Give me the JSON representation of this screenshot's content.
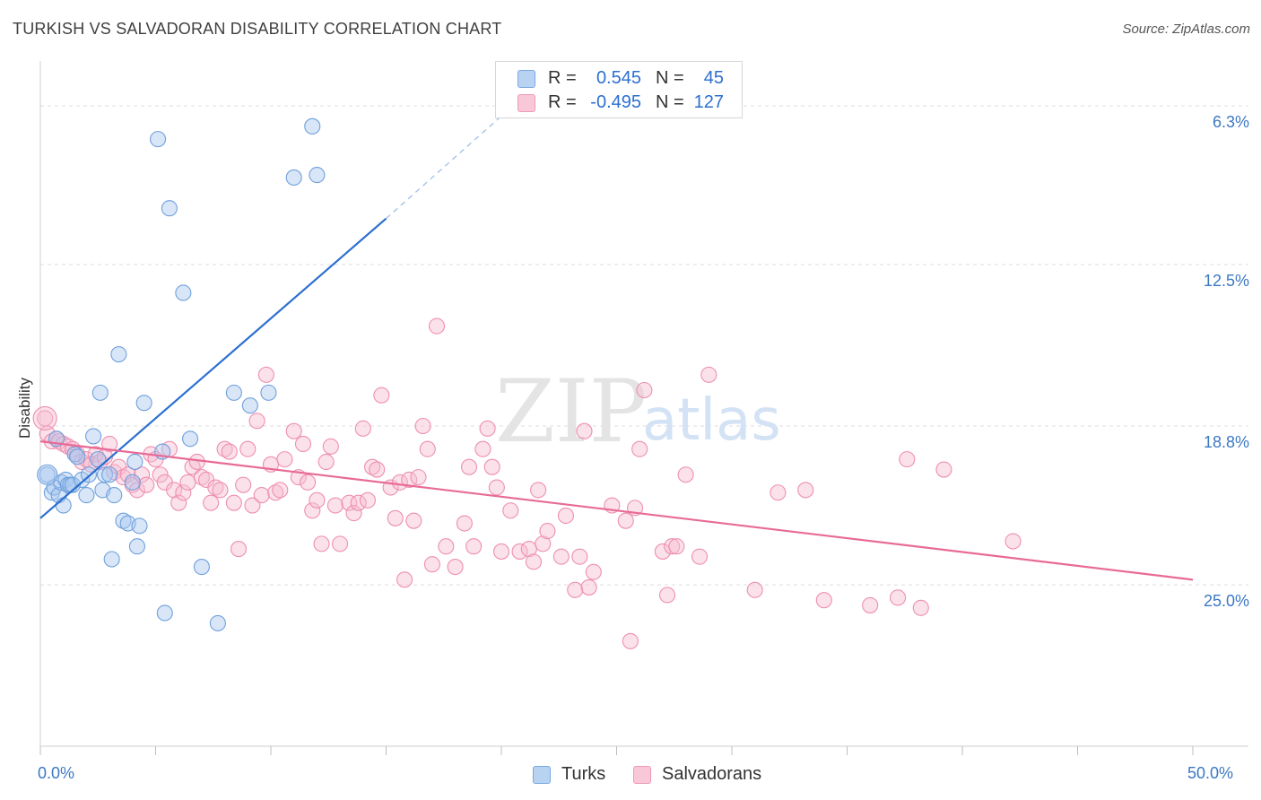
{
  "title": "TURKISH VS SALVADORAN DISABILITY CORRELATION CHART",
  "source": "Source: ZipAtlas.com",
  "watermark": {
    "zip": "ZIP",
    "atlas": "atlas"
  },
  "legend": {
    "turks": {
      "r_label": "R =",
      "r_value": "0.545",
      "n_label": "N =",
      "n_value": "45"
    },
    "salvadorans": {
      "r_label": "R =",
      "r_value": "-0.495",
      "n_label": "N =",
      "n_value": "127"
    }
  },
  "bottom_legend": {
    "turks": "Turks",
    "salvadorans": "Salvadorans"
  },
  "x_tick_labels": {
    "left": "0.0%",
    "right": "50.0%"
  },
  "y_tick_labels": [
    "25.0%",
    "18.8%",
    "12.5%",
    "6.3%"
  ],
  "colors": {
    "turks_fill": "#a9c8f0",
    "turks_stroke": "#6fa0dc",
    "turks_line": "#2b6fd0",
    "salv_fill": "#f6bcd0",
    "salv_stroke": "#ee8fb0",
    "salv_line": "#e86a97",
    "tick_text": "#3b78c4",
    "grid": "#dcdcdc"
  },
  "chart_data": {
    "type": "scatter",
    "title": "TURKISH VS SALVADORAN DISABILITY CORRELATION CHART",
    "xlabel": "",
    "ylabel": "Disability",
    "xlim": [
      0,
      50
    ],
    "ylim": [
      0,
      26.4
    ],
    "y_ticks": [
      6.3,
      12.5,
      18.8,
      25.0
    ],
    "x_ticks": [
      0,
      50
    ],
    "grid": true,
    "legend_position": "top-center",
    "series": [
      {
        "name": "Turks",
        "points": [
          [
            0.3,
            10.6
          ],
          [
            0.5,
            9.9
          ],
          [
            0.6,
            10.1
          ],
          [
            0.7,
            12.0
          ],
          [
            0.8,
            9.8
          ],
          [
            0.9,
            10.3
          ],
          [
            1.0,
            9.4
          ],
          [
            1.1,
            10.4
          ],
          [
            1.2,
            10.2
          ],
          [
            1.3,
            10.2
          ],
          [
            1.4,
            10.2
          ],
          [
            1.5,
            11.4
          ],
          [
            1.6,
            11.3
          ],
          [
            1.8,
            10.4
          ],
          [
            2.0,
            9.8
          ],
          [
            2.1,
            10.6
          ],
          [
            2.3,
            12.1
          ],
          [
            2.5,
            11.2
          ],
          [
            2.6,
            13.8
          ],
          [
            2.7,
            10.0
          ],
          [
            2.8,
            10.6
          ],
          [
            3.0,
            10.6
          ],
          [
            3.1,
            7.3
          ],
          [
            3.2,
            9.8
          ],
          [
            3.4,
            15.3
          ],
          [
            3.6,
            8.8
          ],
          [
            3.8,
            8.7
          ],
          [
            4.0,
            10.3
          ],
          [
            4.1,
            11.1
          ],
          [
            4.2,
            7.8
          ],
          [
            4.3,
            8.6
          ],
          [
            4.5,
            13.4
          ],
          [
            5.1,
            23.7
          ],
          [
            5.3,
            11.5
          ],
          [
            5.4,
            5.2
          ],
          [
            5.6,
            21.0
          ],
          [
            6.2,
            17.7
          ],
          [
            6.5,
            12.0
          ],
          [
            7.0,
            7.0
          ],
          [
            7.7,
            4.8
          ],
          [
            8.4,
            13.8
          ],
          [
            9.1,
            13.3
          ],
          [
            9.9,
            13.8
          ],
          [
            11.0,
            22.2
          ],
          [
            11.8,
            24.2
          ],
          [
            12.0,
            22.3
          ]
        ],
        "trendline": {
          "x": [
            0,
            15
          ],
          "y": [
            8.9,
            20.6
          ],
          "dashed_extension": {
            "x": [
              15,
              21
            ],
            "y": [
              20.6,
              25.4
            ]
          }
        }
      },
      {
        "name": "Salvadorans",
        "points": [
          [
            0.2,
            12.8
          ],
          [
            0.3,
            12.2
          ],
          [
            0.5,
            11.9
          ],
          [
            0.7,
            12.0
          ],
          [
            0.8,
            11.9
          ],
          [
            1.0,
            11.8
          ],
          [
            1.2,
            11.7
          ],
          [
            1.4,
            11.6
          ],
          [
            1.6,
            11.4
          ],
          [
            1.8,
            11.1
          ],
          [
            2.0,
            11.2
          ],
          [
            2.2,
            11.0
          ],
          [
            2.4,
            11.4
          ],
          [
            2.6,
            11.1
          ],
          [
            2.8,
            11.3
          ],
          [
            3.0,
            11.8
          ],
          [
            3.2,
            10.7
          ],
          [
            3.4,
            10.9
          ],
          [
            3.6,
            10.5
          ],
          [
            3.8,
            10.6
          ],
          [
            4.0,
            10.2
          ],
          [
            4.2,
            10.0
          ],
          [
            4.4,
            10.6
          ],
          [
            4.6,
            10.2
          ],
          [
            4.8,
            11.4
          ],
          [
            5.0,
            11.2
          ],
          [
            5.2,
            10.6
          ],
          [
            5.4,
            10.3
          ],
          [
            5.6,
            11.6
          ],
          [
            5.8,
            10.0
          ],
          [
            6.0,
            9.5
          ],
          [
            6.2,
            9.9
          ],
          [
            6.4,
            10.3
          ],
          [
            6.6,
            10.9
          ],
          [
            6.8,
            11.1
          ],
          [
            7.0,
            10.5
          ],
          [
            7.2,
            10.4
          ],
          [
            7.4,
            9.5
          ],
          [
            7.6,
            10.1
          ],
          [
            7.8,
            10.0
          ],
          [
            8.0,
            11.6
          ],
          [
            8.2,
            11.5
          ],
          [
            8.4,
            9.5
          ],
          [
            8.6,
            7.7
          ],
          [
            8.8,
            10.2
          ],
          [
            9.0,
            11.6
          ],
          [
            9.2,
            9.4
          ],
          [
            9.4,
            12.7
          ],
          [
            9.6,
            9.8
          ],
          [
            9.8,
            14.5
          ],
          [
            10.0,
            11.0
          ],
          [
            10.2,
            9.9
          ],
          [
            10.4,
            10.0
          ],
          [
            10.6,
            11.2
          ],
          [
            11.0,
            12.3
          ],
          [
            11.2,
            10.5
          ],
          [
            11.4,
            11.8
          ],
          [
            11.6,
            10.3
          ],
          [
            11.8,
            9.2
          ],
          [
            12.0,
            9.6
          ],
          [
            12.2,
            7.9
          ],
          [
            12.4,
            11.1
          ],
          [
            12.6,
            11.7
          ],
          [
            12.8,
            9.4
          ],
          [
            13.0,
            7.9
          ],
          [
            13.4,
            9.5
          ],
          [
            13.6,
            9.1
          ],
          [
            13.8,
            9.5
          ],
          [
            14.0,
            12.4
          ],
          [
            14.2,
            9.6
          ],
          [
            14.4,
            10.9
          ],
          [
            14.6,
            10.8
          ],
          [
            14.8,
            13.7
          ],
          [
            15.2,
            10.1
          ],
          [
            15.4,
            8.9
          ],
          [
            15.6,
            10.3
          ],
          [
            15.8,
            6.5
          ],
          [
            16.0,
            10.4
          ],
          [
            16.2,
            8.8
          ],
          [
            16.4,
            10.5
          ],
          [
            16.6,
            12.5
          ],
          [
            16.8,
            11.6
          ],
          [
            17.0,
            7.1
          ],
          [
            17.2,
            16.4
          ],
          [
            17.6,
            7.8
          ],
          [
            18.0,
            7.0
          ],
          [
            18.4,
            8.7
          ],
          [
            18.6,
            10.9
          ],
          [
            18.8,
            7.8
          ],
          [
            19.2,
            11.6
          ],
          [
            19.4,
            12.4
          ],
          [
            19.6,
            10.9
          ],
          [
            19.8,
            10.1
          ],
          [
            20.0,
            7.6
          ],
          [
            20.4,
            9.2
          ],
          [
            20.8,
            7.6
          ],
          [
            21.2,
            7.7
          ],
          [
            21.4,
            7.2
          ],
          [
            21.6,
            10.0
          ],
          [
            21.8,
            7.9
          ],
          [
            22.0,
            8.4
          ],
          [
            22.6,
            7.4
          ],
          [
            22.8,
            9.0
          ],
          [
            23.2,
            6.1
          ],
          [
            23.4,
            7.4
          ],
          [
            23.6,
            12.3
          ],
          [
            23.8,
            6.2
          ],
          [
            24.0,
            6.8
          ],
          [
            24.8,
            9.4
          ],
          [
            25.4,
            8.8
          ],
          [
            25.6,
            4.1
          ],
          [
            25.8,
            9.3
          ],
          [
            26.0,
            11.6
          ],
          [
            26.2,
            13.9
          ],
          [
            27.0,
            7.6
          ],
          [
            27.2,
            5.9
          ],
          [
            27.4,
            7.8
          ],
          [
            27.6,
            7.8
          ],
          [
            28.0,
            10.6
          ],
          [
            28.6,
            7.4
          ],
          [
            29.0,
            14.5
          ],
          [
            31.0,
            6.1
          ],
          [
            32.0,
            9.9
          ],
          [
            33.2,
            10.0
          ],
          [
            34.0,
            5.7
          ],
          [
            36.0,
            5.5
          ],
          [
            37.2,
            5.8
          ],
          [
            37.6,
            11.2
          ],
          [
            38.2,
            5.4
          ],
          [
            39.2,
            10.8
          ],
          [
            42.2,
            8.0
          ]
        ],
        "trendline": {
          "x": [
            0,
            50
          ],
          "y": [
            11.9,
            6.5
          ]
        }
      }
    ]
  }
}
